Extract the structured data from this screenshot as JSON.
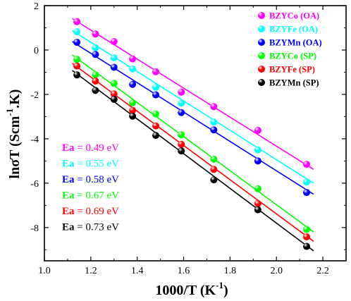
{
  "chart_data": {
    "type": "scatter",
    "xlabel_main": "1000/T (K",
    "xlabel_sup": "-1",
    "xlabel_end": ")",
    "ylabel_main": "lnσT (Scm",
    "ylabel_sup": "-1",
    "ylabel_end": ".K)",
    "xlim": [
      1.0,
      2.3
    ],
    "ylim": [
      -9.5,
      2.0
    ],
    "x_ticks": [
      1.0,
      1.2,
      1.4,
      1.6,
      1.8,
      2.0,
      2.2
    ],
    "x_tick_labels": [
      "1.0",
      "1.2",
      "1.4",
      "1.6",
      "1.8",
      "2.0",
      "2.2"
    ],
    "y_ticks": [
      2,
      0,
      -2,
      -4,
      -6,
      -8
    ],
    "y_tick_labels": [
      "2",
      "0",
      "-2",
      "-4",
      "-6",
      "-8"
    ],
    "grid": false,
    "legend_position": "top-right",
    "x": [
      1.14,
      1.22,
      1.3,
      1.38,
      1.48,
      1.59,
      1.73,
      1.92,
      2.13
    ],
    "series": [
      {
        "name": "BZYCo (OA)",
        "color": "#ff00ff",
        "values": [
          1.28,
          0.72,
          0.38,
          -0.4,
          -0.98,
          -1.9,
          -2.55,
          -3.62,
          -5.15
        ],
        "fit": {
          "x": [
            1.12,
            2.16
          ],
          "y": [
            1.42,
            -5.38
          ]
        }
      },
      {
        "name": "BZYFe (OA)",
        "color": "#00ffff",
        "values": [
          0.82,
          0.1,
          -0.35,
          -0.85,
          -1.68,
          -2.4,
          -3.25,
          -4.5,
          -5.95
        ],
        "fit": {
          "x": [
            1.12,
            2.16
          ],
          "y": [
            0.88,
            -6.0
          ]
        }
      },
      {
        "name": "BZYMn (OA)",
        "color": "#0000ff",
        "values": [
          0.35,
          -0.2,
          -0.78,
          -1.55,
          -2.02,
          -2.82,
          -3.6,
          -5.0,
          -6.42
        ],
        "fit": {
          "x": [
            1.12,
            2.16
          ],
          "y": [
            0.38,
            -6.5
          ]
        }
      },
      {
        "name": "BZYCo (SP)",
        "color": "#00ff00",
        "values": [
          -0.42,
          -1.12,
          -1.5,
          -2.38,
          -2.88,
          -3.82,
          -4.92,
          -6.25,
          -8.08
        ],
        "fit": {
          "x": [
            1.12,
            2.16
          ],
          "y": [
            -0.22,
            -8.2
          ]
        }
      },
      {
        "name": "BZYFe (SP)",
        "color": "#ff0000",
        "values": [
          -0.72,
          -1.4,
          -1.98,
          -2.72,
          -3.42,
          -4.25,
          -5.38,
          -6.92,
          -8.42
        ],
        "fit": {
          "x": [
            1.12,
            2.16
          ],
          "y": [
            -0.6,
            -8.62
          ]
        }
      },
      {
        "name": "BZYMn (SP)",
        "color": "#000000",
        "values": [
          -1.12,
          -1.82,
          -2.22,
          -2.98,
          -3.85,
          -4.55,
          -5.85,
          -7.2,
          -8.85
        ],
        "fit": {
          "x": [
            1.12,
            2.16
          ],
          "y": [
            -0.92,
            -9.05
          ]
        }
      }
    ],
    "annotations": [
      {
        "label": "Ea",
        "text": " = 0.49 eV",
        "color": "#ff00ff"
      },
      {
        "label": "Ea",
        "text": " = 0.55 eV",
        "color": "#00ffff"
      },
      {
        "label": "Ea",
        "text": " = 0.58 eV",
        "color": "#0000ff"
      },
      {
        "label": "Ea",
        "text": " = 0.67 eV",
        "color": "#00ff00"
      },
      {
        "label": "Ea",
        "text": " = 0.69 eV",
        "color": "#ff0000"
      },
      {
        "label": "Ea",
        "text": " = 0.73 eV",
        "color": "#000000"
      }
    ]
  }
}
